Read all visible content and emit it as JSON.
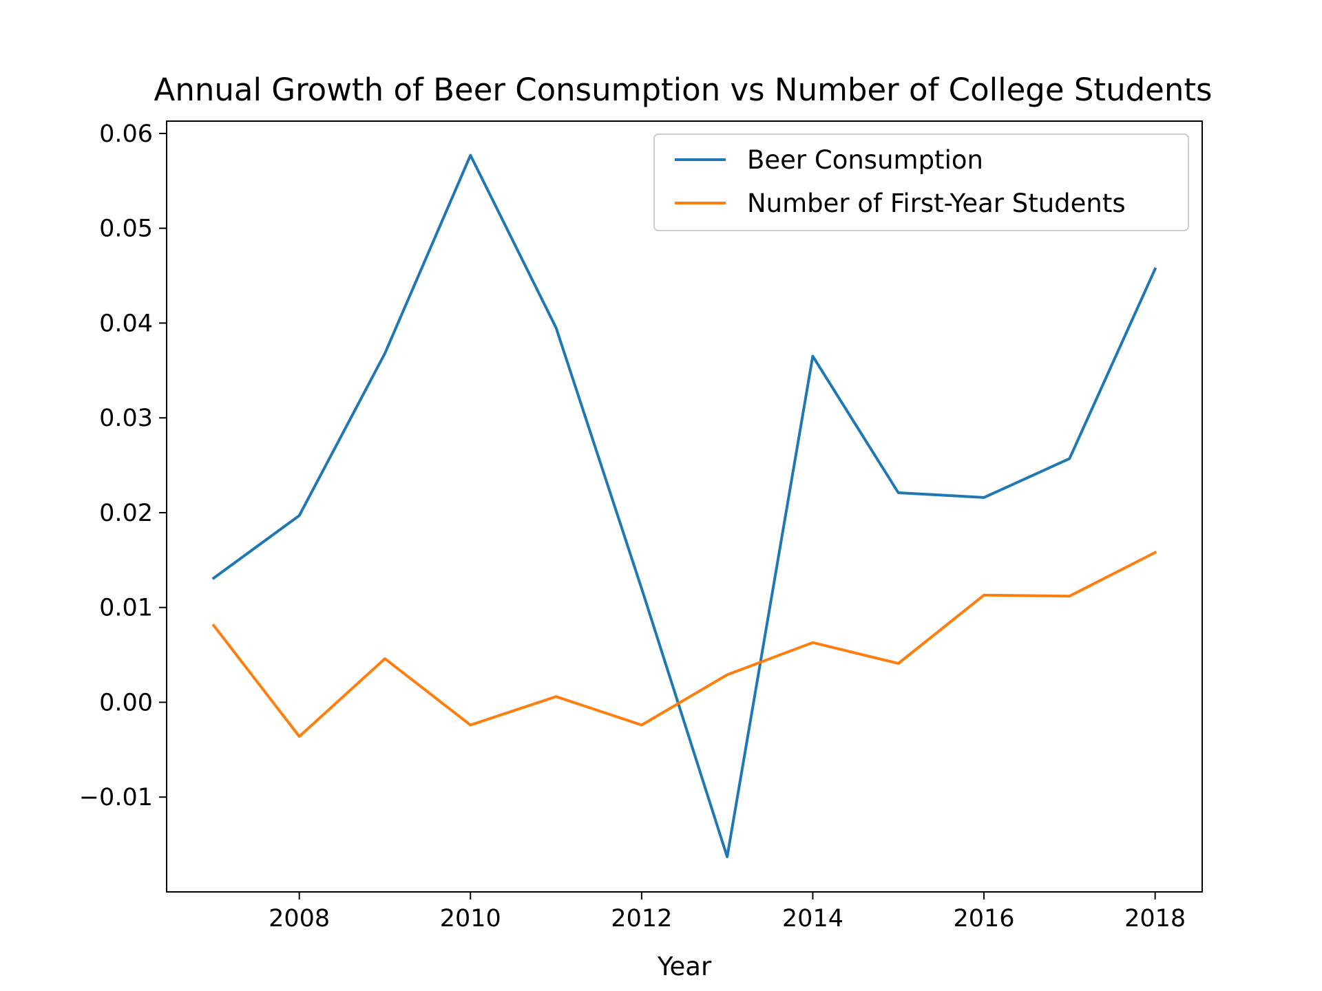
{
  "chart_data": {
    "type": "line",
    "title": "Annual Growth of Beer Consumption vs Number of College Students",
    "xlabel": "Year",
    "ylabel": "",
    "x": [
      2007,
      2008,
      2009,
      2010,
      2011,
      2012,
      2013,
      2014,
      2015,
      2016,
      2017,
      2018
    ],
    "xlim": [
      2006.45,
      2018.55
    ],
    "ylim": [
      -0.02,
      0.0613
    ],
    "x_ticks": [
      2008,
      2010,
      2012,
      2014,
      2016,
      2018
    ],
    "x_tick_labels": [
      "2008",
      "2010",
      "2012",
      "2014",
      "2016",
      "2018"
    ],
    "y_ticks": [
      -0.01,
      0.0,
      0.01,
      0.02,
      0.03,
      0.04,
      0.05,
      0.06
    ],
    "y_tick_labels": [
      "−0.01",
      "0.00",
      "0.01",
      "0.02",
      "0.03",
      "0.04",
      "0.05",
      "0.06"
    ],
    "grid": false,
    "legend_position": "top-right",
    "series": [
      {
        "name": "Beer Consumption",
        "color": "#1f77b4",
        "values": [
          0.0131,
          0.0197,
          0.0368,
          0.0577,
          0.0395,
          0.012,
          -0.0163,
          0.0365,
          0.0221,
          0.0216,
          0.0257,
          0.0457
        ]
      },
      {
        "name": "Number of First-Year Students",
        "color": "#ff7f0e",
        "values": [
          0.0081,
          -0.0036,
          0.0046,
          -0.0024,
          0.0006,
          -0.0024,
          0.0029,
          0.0063,
          0.0041,
          0.0113,
          0.0112,
          0.0158
        ]
      }
    ]
  }
}
